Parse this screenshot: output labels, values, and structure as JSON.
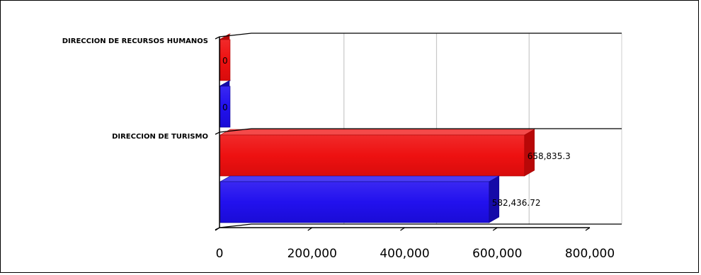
{
  "chart_data": {
    "type": "bar",
    "orientation": "horizontal",
    "style": "3d",
    "categories": [
      "DIRECCION DE RECURSOS HUMANOS",
      "DIRECCION DE TURISMO"
    ],
    "series": [
      {
        "values": [
          0,
          658835.3
        ],
        "labels": [
          "0",
          "658,835.3"
        ],
        "color": "#ee1111"
      },
      {
        "values": [
          0,
          582436.72
        ],
        "labels": [
          "0",
          "582,436.72"
        ],
        "color": "#2211ee"
      }
    ],
    "xlim": [
      0,
      800000
    ],
    "xticks": [
      0,
      200000,
      400000,
      600000,
      800000
    ],
    "xtick_labels": [
      "0",
      "200,000",
      "400,000",
      "600,000",
      "800,000"
    ],
    "grid": "vertical",
    "legend": "none"
  }
}
